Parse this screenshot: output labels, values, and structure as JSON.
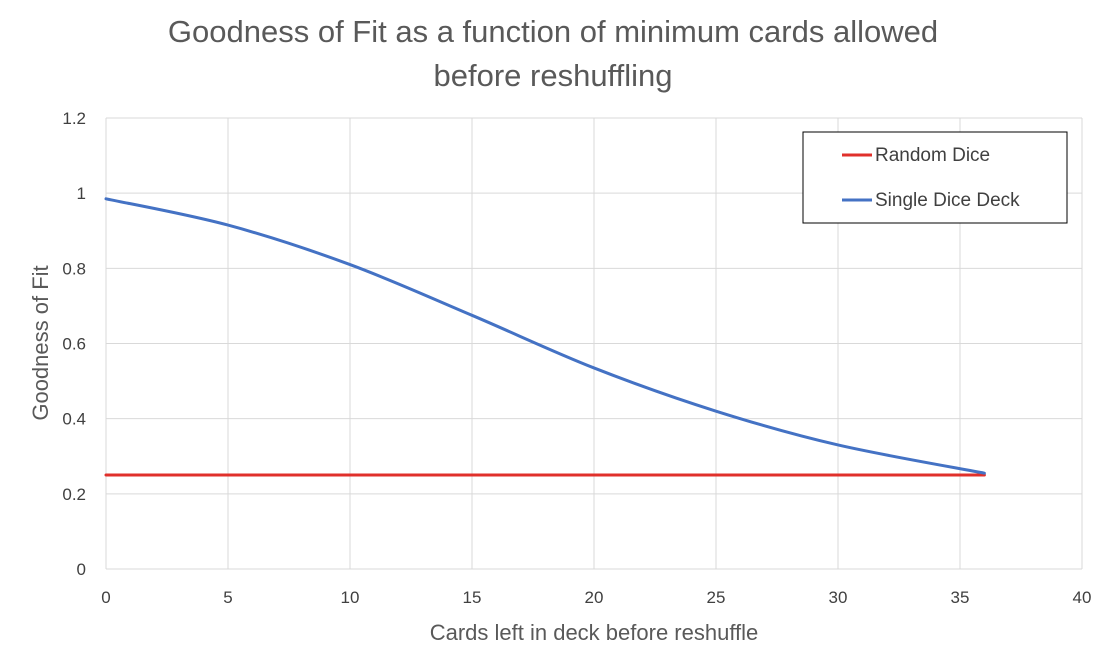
{
  "chart_data": {
    "type": "line",
    "title_lines": [
      "Goodness of Fit as a function of minimum cards allowed",
      "before reshuffling"
    ],
    "xlabel": "Cards left in deck before reshuffle",
    "ylabel": "Goodness of Fit",
    "xlim": [
      0,
      40
    ],
    "ylim": [
      0,
      1.2
    ],
    "x_ticks": [
      "0",
      "5",
      "10",
      "15",
      "20",
      "25",
      "30",
      "35",
      "40"
    ],
    "y_ticks": [
      "0",
      "0.2",
      "0.4",
      "0.6",
      "0.8",
      "1",
      "1.2"
    ],
    "grid": true,
    "legend_position": "top-right",
    "series": [
      {
        "name": "Random Dice",
        "color": "#e0302b",
        "x": [
          0,
          36
        ],
        "y": [
          0.25,
          0.25
        ]
      },
      {
        "name": "Single Dice Deck",
        "color": "#4472c4",
        "x": [
          0,
          5,
          10,
          15,
          20,
          25,
          30,
          36
        ],
        "y": [
          0.985,
          0.915,
          0.81,
          0.675,
          0.535,
          0.42,
          0.33,
          0.255
        ]
      }
    ]
  }
}
